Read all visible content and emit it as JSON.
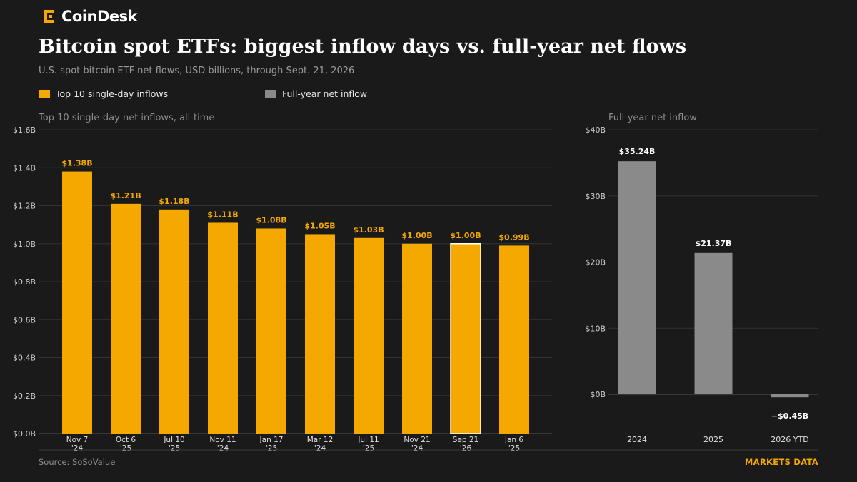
{
  "brand": {
    "name": "CoinDesk"
  },
  "header": {
    "title": "Bitcoin spot ETFs: biggest inflow days vs. full-year net flows",
    "subtitle": "U.S. spot bitcoin ETF net flows, USD billions, through Sept. 21, 2026"
  },
  "legend": {
    "items": [
      {
        "label": "Top 10 single-day inflows",
        "color": "#f5a800"
      },
      {
        "label": "Full-year net inflow",
        "color": "#8a8a8a"
      }
    ]
  },
  "colors": {
    "orange": "#f5a800",
    "gray": "#8a8a8a",
    "highlight_outline": "#ffffff"
  },
  "chart_data": [
    {
      "type": "bar",
      "title": "Top 10 single-day net inflows, all-time",
      "categories": [
        [
          "Nov 7",
          "'24"
        ],
        [
          "Oct 6",
          "'25"
        ],
        [
          "Jul 10",
          "'25"
        ],
        [
          "Nov 11",
          "'24"
        ],
        [
          "Jan 17",
          "'25"
        ],
        [
          "Mar 12",
          "'24"
        ],
        [
          "Jul 11",
          "'25"
        ],
        [
          "Nov 21",
          "'24"
        ],
        [
          "Sep 21",
          "'26"
        ],
        [
          "Jan 6",
          "'25"
        ]
      ],
      "values": [
        1.38,
        1.21,
        1.18,
        1.11,
        1.08,
        1.05,
        1.03,
        1.0,
        1.0,
        0.99
      ],
      "value_labels": [
        "$1.38B",
        "$1.21B",
        "$1.18B",
        "$1.11B",
        "$1.08B",
        "$1.05B",
        "$1.03B",
        "$1.00B",
        "$1.00B",
        "$0.99B"
      ],
      "highlight_index": 8,
      "ylim": [
        0,
        1.6
      ],
      "yticks": [
        0,
        0.2,
        0.4,
        0.6,
        0.8,
        1.0,
        1.2,
        1.4,
        1.6
      ],
      "ytick_labels": [
        "$0.0B",
        "$0.2B",
        "$0.4B",
        "$0.6B",
        "$0.8B",
        "$1.0B",
        "$1.2B",
        "$1.4B",
        "$1.6B"
      ],
      "grid": true
    },
    {
      "type": "bar",
      "title": "Full-year net inflow",
      "categories": [
        "2024",
        "2025",
        "2026 YTD"
      ],
      "values": [
        35.24,
        21.37,
        -0.45
      ],
      "value_labels": [
        "$35.24B",
        "$21.37B",
        "−$0.45B"
      ],
      "ylim": [
        0,
        40
      ],
      "yticks": [
        0,
        10,
        20,
        30,
        40
      ],
      "ytick_labels": [
        "$0B",
        "$10B",
        "$20B",
        "$30B",
        "$40B"
      ],
      "grid": true
    }
  ],
  "footer": {
    "source": "Source: SoSoValue",
    "section": "MARKETS DATA"
  }
}
